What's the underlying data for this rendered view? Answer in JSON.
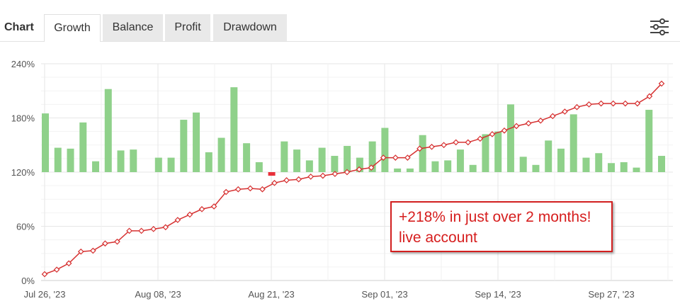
{
  "header": {
    "chart_label": "Chart",
    "tabs": [
      {
        "label": "Growth",
        "active": true
      },
      {
        "label": "Balance",
        "active": false
      },
      {
        "label": "Profit",
        "active": false
      },
      {
        "label": "Drawdown",
        "active": false
      }
    ],
    "settings_icon": "sliders-icon"
  },
  "annotation": {
    "line1": "+218% in just over 2 months!",
    "line2": "live account"
  },
  "colors": {
    "line": "#d63030",
    "bar_positive": "#8fd18a",
    "bar_negative": "#e8303a",
    "annotation": "#d61e1e"
  },
  "chart_data": {
    "type": "line",
    "xlabel": "",
    "ylabel": "",
    "ylim": [
      0,
      240
    ],
    "y_ticks": [
      "0%",
      "60%",
      "120%",
      "180%",
      "240%"
    ],
    "x_tick_labels": [
      "Jul 26, '23",
      "Aug 08, '23",
      "Aug 21, '23",
      "Sep 01, '23",
      "Sep 14, '23",
      "Sep 27, '23"
    ],
    "grid": true,
    "series": [
      {
        "type": "line",
        "values": [
          7,
          12,
          19,
          32,
          33,
          41,
          43,
          55,
          55,
          57,
          59,
          67,
          73,
          79,
          82,
          98,
          101,
          102,
          101,
          108,
          111,
          112,
          115,
          116,
          118,
          120,
          123,
          125,
          136,
          136,
          136,
          146,
          148,
          150,
          153,
          153,
          157,
          162,
          166,
          171,
          174,
          177,
          182,
          187,
          192,
          195,
          196,
          196,
          196,
          196,
          204,
          218
        ]
      },
      {
        "type": "bar",
        "values": [
          65,
          27,
          26,
          55,
          12,
          92,
          24,
          25,
          0,
          16,
          16,
          58,
          66,
          22,
          38,
          94,
          32,
          11,
          -4,
          34,
          25,
          13,
          27,
          18,
          29,
          16,
          34,
          49,
          4,
          4,
          41,
          12,
          13,
          25,
          8,
          42,
          45,
          75,
          17,
          8,
          35,
          26,
          64,
          16,
          21,
          10,
          11,
          5,
          69,
          18
        ]
      }
    ]
  }
}
